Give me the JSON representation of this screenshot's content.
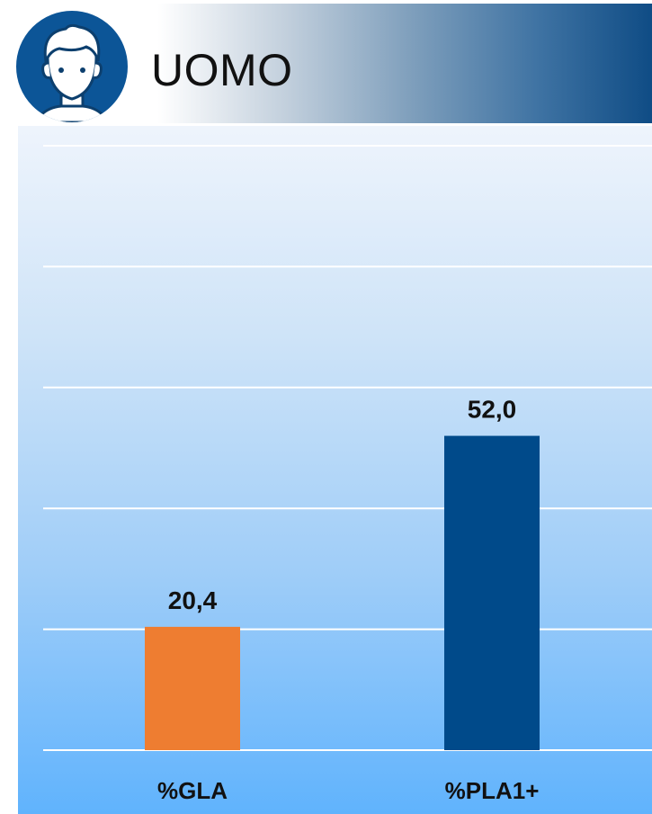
{
  "header": {
    "title": "UOMO",
    "icon": "man-face-icon",
    "badge_color": "#0c5597"
  },
  "chart_data": {
    "type": "bar",
    "categories": [
      "%GLA",
      "%PLA1+"
    ],
    "values": [
      20.4,
      52.0
    ],
    "value_labels": [
      "20,4",
      "52,0"
    ],
    "colors": [
      "#ee7d31",
      "#004a8a"
    ],
    "ylim": [
      0,
      100
    ],
    "y_gridlines": [
      0,
      20,
      40,
      60,
      80,
      100
    ],
    "grid": true,
    "legend": "none",
    "title": "",
    "xlabel": "",
    "ylabel": ""
  }
}
